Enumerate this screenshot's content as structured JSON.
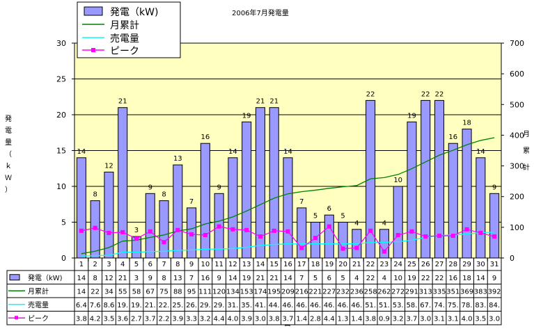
{
  "chart_data": {
    "type": "bar",
    "title": "2006年7月発電量",
    "xlabel": "日",
    "ylabel": "発電量（ｋＷ）",
    "y2label": "月累計",
    "ylim": [
      0,
      30
    ],
    "y2lim": [
      0,
      700
    ],
    "yticks": [
      0,
      5,
      10,
      15,
      20,
      25,
      30
    ],
    "y2ticks": [
      0,
      100,
      200,
      300,
      400,
      500,
      600,
      700
    ],
    "grid": true,
    "legend_position": "top-left",
    "categories": [
      "1",
      "2",
      "3",
      "4",
      "5",
      "6",
      "7",
      "8",
      "9",
      "10",
      "11",
      "12",
      "13",
      "14",
      "15",
      "16",
      "17",
      "18",
      "19",
      "20",
      "21",
      "22",
      "23",
      "24",
      "25",
      "26",
      "27",
      "28",
      "29",
      "30",
      "31"
    ],
    "series": [
      {
        "name": "発電（kW)",
        "kind": "bar",
        "axis": "left",
        "color": "#9999ff",
        "values": [
          14,
          8,
          12,
          21,
          3,
          9,
          8,
          13,
          7,
          16,
          9,
          14,
          19,
          21,
          21,
          14,
          7,
          5,
          6,
          5,
          4,
          22,
          4,
          10,
          19,
          22,
          22,
          16,
          18,
          14,
          9
        ],
        "labels": [
          "14",
          "8",
          "12",
          "21",
          "3",
          "9",
          "8",
          "13",
          "7",
          "16",
          "9",
          "14",
          "19",
          "21",
          "21",
          "14",
          "7",
          "5",
          "6",
          "5",
          "4",
          "22",
          "4",
          "10",
          "19",
          "22",
          "22",
          "16",
          "18",
          "14",
          "9"
        ]
      },
      {
        "name": "月累計",
        "kind": "line",
        "axis": "right",
        "color": "#008000",
        "values": [
          14,
          22,
          34,
          55,
          58,
          67,
          75,
          88,
          95,
          111,
          120,
          134,
          153,
          174,
          195,
          209,
          216,
          221,
          227,
          232,
          236,
          258,
          262,
          272,
          291,
          313,
          335,
          351,
          369,
          383,
          392
        ],
        "labels": [
          "14",
          "22",
          "34",
          "55",
          "58",
          "67",
          "75",
          "88",
          "95",
          "111",
          "120",
          "134",
          "153",
          "174",
          "195",
          "209",
          "216",
          "221",
          "227",
          "232",
          "236",
          "258",
          "262",
          "272",
          "291",
          "313",
          "335",
          "351",
          "369",
          "383",
          "392"
        ]
      },
      {
        "name": "売電量",
        "kind": "line",
        "axis": "right",
        "color": "#00ffff",
        "values": [
          6.4,
          7.6,
          8.6,
          19,
          19,
          21,
          22,
          25,
          26,
          29,
          29,
          31,
          35,
          41,
          44,
          46,
          46,
          46,
          46,
          46,
          46,
          51,
          51,
          53,
          58,
          67,
          74,
          75,
          78,
          83,
          84
        ],
        "labels": [
          "6.4",
          "7.6",
          "8.6",
          "19.",
          "19.",
          "21.",
          "22.",
          "25.",
          "26.",
          "29.",
          "29.",
          "31.",
          "35.",
          "41.",
          "44.",
          "46.",
          "46.",
          "46.",
          "46.",
          "46.",
          "46.",
          "51.",
          "51.",
          "53.",
          "58.",
          "67.",
          "74.",
          "75.",
          "78.",
          "83.",
          "84."
        ]
      },
      {
        "name": "ピーク",
        "kind": "line",
        "axis": "left",
        "color": "#ff00ff",
        "values": [
          3.8,
          4.2,
          3.5,
          3.6,
          2.7,
          3.7,
          2.2,
          3.9,
          3.3,
          3.2,
          4.4,
          4.0,
          3.9,
          3.0,
          3.8,
          3.7,
          1.4,
          2.8,
          4.4,
          1.3,
          1.4,
          3.8,
          0.9,
          3.2,
          3.7,
          3.0,
          3.1,
          3.1,
          4.0,
          3.5,
          3.0
        ],
        "labels": [
          "3.8",
          "4.2",
          "3.5",
          "3.6",
          "2.7",
          "3.7",
          "2.2",
          "3.9",
          "3.3",
          "3.2",
          "4.4",
          "4.0",
          "3.9",
          "3.0",
          "3.8",
          "3.7",
          "1.4",
          "2.8",
          "4.4",
          "1.3",
          "1.4",
          "3.8",
          "0.9",
          "3.2",
          "3.7",
          "3.0",
          "3.1",
          "3.1",
          "4.0",
          "3.5",
          "3.0"
        ]
      }
    ]
  }
}
